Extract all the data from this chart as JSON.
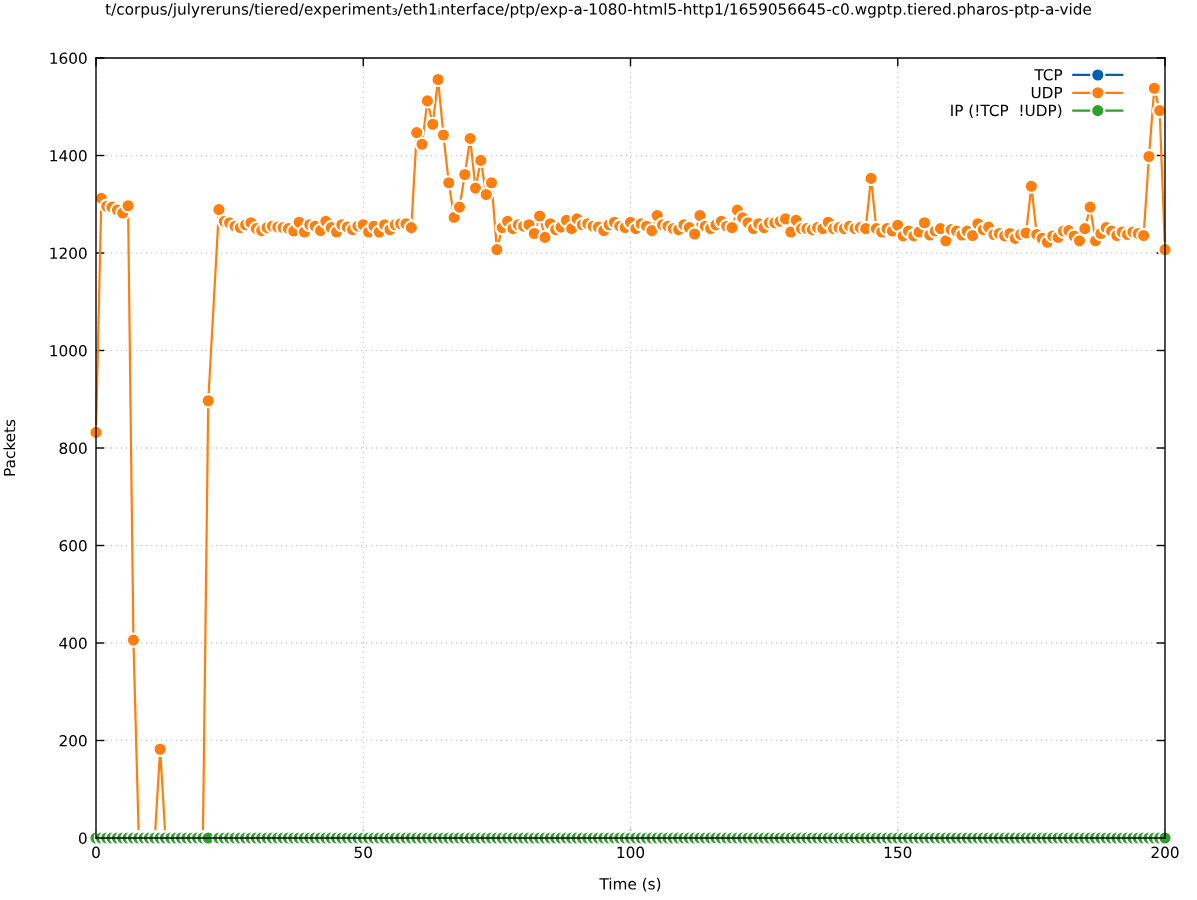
{
  "chart_data": {
    "type": "line",
    "title": "t/corpus/julyreruns/tiered/experiment₃/eth1ᵢnterface/ptp/exp-a-1080-html5-http1/1659056645-c0.wgptp.tiered.pharos-ptp-a-vide",
    "xlabel": "Time (s)",
    "ylabel": "Packets",
    "xlim": [
      0,
      200
    ],
    "ylim": [
      0,
      1600
    ],
    "xticks": [
      0,
      50,
      100,
      150,
      200
    ],
    "yticks": [
      0,
      200,
      400,
      600,
      800,
      1000,
      1200,
      1400,
      1600
    ],
    "grid": true,
    "legend": "top right",
    "marker": "circle",
    "line_style": "solid",
    "x": [
      0,
      1,
      2,
      3,
      4,
      5,
      6,
      7,
      8,
      9,
      10,
      11,
      12,
      13,
      14,
      15,
      16,
      17,
      18,
      19,
      20,
      21,
      23,
      24,
      25,
      26,
      27,
      28,
      29,
      30,
      31,
      32,
      33,
      34,
      35,
      36,
      37,
      38,
      39,
      40,
      41,
      42,
      43,
      44,
      45,
      46,
      47,
      48,
      49,
      50,
      51,
      52,
      53,
      54,
      55,
      56,
      57,
      58,
      59,
      60,
      61,
      62,
      63,
      64,
      65,
      66,
      67,
      68,
      69,
      70,
      71,
      72,
      73,
      74,
      75,
      76,
      77,
      78,
      79,
      80,
      81,
      82,
      83,
      84,
      85,
      86,
      87,
      88,
      89,
      90,
      91,
      92,
      93,
      94,
      95,
      96,
      97,
      98,
      99,
      100,
      101,
      102,
      103,
      104,
      105,
      106,
      107,
      108,
      109,
      110,
      111,
      112,
      113,
      114,
      115,
      116,
      117,
      118,
      119,
      120,
      121,
      122,
      123,
      124,
      125,
      126,
      127,
      128,
      129,
      130,
      131,
      132,
      133,
      134,
      135,
      136,
      137,
      138,
      139,
      140,
      141,
      142,
      143,
      144,
      145,
      146,
      147,
      148,
      149,
      150,
      151,
      152,
      153,
      154,
      155,
      156,
      157,
      158,
      159,
      160,
      161,
      162,
      163,
      164,
      165,
      166,
      167,
      168,
      169,
      170,
      171,
      172,
      173,
      174,
      175,
      176,
      177,
      178,
      179,
      180,
      181,
      182,
      183,
      184,
      185,
      186,
      187,
      188,
      189,
      190,
      191,
      192,
      193,
      194,
      195,
      196,
      197,
      198,
      199,
      200
    ],
    "series": [
      {
        "name": "TCP",
        "color": "#0060ad",
        "values": [
          null,
          null,
          null,
          null,
          null,
          null,
          null,
          null,
          null,
          null,
          null,
          null,
          null,
          null,
          null,
          null,
          null,
          null,
          null,
          null,
          null,
          null,
          null,
          null,
          null,
          null,
          null,
          null,
          null,
          null,
          null,
          null,
          null,
          null,
          null,
          null,
          null,
          null,
          null,
          null,
          null,
          null,
          null,
          null,
          null,
          null,
          null,
          null,
          null,
          null,
          null,
          null,
          null,
          null,
          null,
          null,
          null,
          null,
          null,
          null,
          null,
          null,
          null,
          null,
          null,
          null,
          null,
          null,
          null,
          null,
          null,
          null,
          null,
          null,
          null,
          null,
          null,
          null,
          null,
          null,
          null,
          null,
          null,
          null,
          null,
          null,
          null,
          null,
          null,
          null,
          null,
          null,
          null,
          null,
          null,
          null,
          null,
          null,
          null,
          null,
          null,
          null,
          null,
          null,
          null,
          null,
          null,
          null,
          null,
          null,
          null,
          null,
          null,
          null,
          null,
          null,
          null,
          null,
          null,
          null,
          null,
          null,
          null,
          null,
          null,
          null,
          null,
          null,
          null,
          null,
          null,
          null,
          null,
          null,
          null,
          null,
          null,
          null,
          null,
          null,
          null,
          null,
          null,
          null,
          null,
          null,
          null,
          null,
          null,
          null,
          null,
          null,
          null,
          null,
          null,
          null,
          null,
          null,
          null,
          null,
          null,
          null,
          null,
          null,
          null,
          null,
          null,
          null,
          null,
          null,
          null,
          null,
          null,
          null,
          null,
          null,
          null,
          null,
          null,
          null,
          null,
          null,
          null,
          null,
          null,
          null,
          null,
          null,
          null,
          null,
          null,
          null,
          null,
          null,
          null,
          null,
          null,
          null,
          null,
          null
        ]
      },
      {
        "name": "UDP",
        "color": "#ff7f0e",
        "values": [
          832,
          1312,
          1296,
          1294,
          1288,
          1282,
          1297,
          406,
          0,
          0,
          0,
          0,
          182,
          0,
          0,
          0,
          0,
          0,
          0,
          0,
          0,
          897,
          1289,
          1265,
          1262,
          1255,
          1252,
          1258,
          1262,
          1250,
          1246,
          1252,
          1255,
          1253,
          1252,
          1250,
          1245,
          1263,
          1243,
          1258,
          1255,
          1246,
          1265,
          1252,
          1243,
          1258,
          1253,
          1248,
          1255,
          1258,
          1243,
          1255,
          1243,
          1258,
          1248,
          1258,
          1260,
          1260,
          1252,
          1447,
          1423,
          1512,
          1464,
          1556,
          1442,
          1344,
          1273,
          1294,
          1361,
          1435,
          1333,
          1390,
          1320,
          1344,
          1207,
          1252,
          1265,
          1250,
          1258,
          1255,
          1258,
          1240,
          1276,
          1232,
          1260,
          1248,
          1253,
          1267,
          1250,
          1270,
          1258,
          1260,
          1255,
          1253,
          1246,
          1258,
          1263,
          1255,
          1252,
          1263,
          1250,
          1260,
          1255,
          1246,
          1277,
          1258,
          1255,
          1250,
          1248,
          1258,
          1252,
          1239,
          1277,
          1255,
          1250,
          1258,
          1265,
          1255,
          1252,
          1288,
          1272,
          1262,
          1250,
          1260,
          1252,
          1262,
          1262,
          1265,
          1270,
          1243,
          1267,
          1250,
          1250,
          1248,
          1252,
          1250,
          1263,
          1250,
          1252,
          1250,
          1255,
          1250,
          1252,
          1250,
          1353,
          1250,
          1243,
          1250,
          1245,
          1257,
          1235,
          1245,
          1235,
          1243,
          1262,
          1237,
          1245,
          1250,
          1225,
          1248,
          1245,
          1237,
          1245,
          1236,
          1260,
          1248,
          1253,
          1238,
          1240,
          1235,
          1240,
          1230,
          1238,
          1241,
          1337,
          1238,
          1230,
          1222,
          1235,
          1232,
          1245,
          1246,
          1235,
          1225,
          1250,
          1294,
          1225,
          1240,
          1252,
          1245,
          1236,
          1243,
          1238,
          1243,
          1240,
          1236,
          1398,
          1538,
          1492,
          1207
        ]
      },
      {
        "name": "IP (!TCP  !UDP)",
        "color": "#2ca02c",
        "values": [
          0,
          0,
          0,
          0,
          0,
          0,
          0,
          0,
          0,
          0,
          0,
          0,
          0,
          0,
          0,
          0,
          0,
          0,
          0,
          0,
          0,
          0,
          0,
          0,
          0,
          0,
          0,
          0,
          0,
          0,
          0,
          0,
          0,
          0,
          0,
          0,
          0,
          0,
          0,
          0,
          0,
          0,
          0,
          0,
          0,
          0,
          0,
          0,
          0,
          0,
          0,
          0,
          0,
          0,
          0,
          0,
          0,
          0,
          0,
          0,
          0,
          0,
          0,
          0,
          0,
          0,
          0,
          0,
          0,
          0,
          0,
          0,
          0,
          0,
          0,
          0,
          0,
          0,
          0,
          0,
          0,
          0,
          0,
          0,
          0,
          0,
          0,
          0,
          0,
          0,
          0,
          0,
          0,
          0,
          0,
          0,
          0,
          0,
          0,
          0,
          0,
          0,
          0,
          0,
          0,
          0,
          0,
          0,
          0,
          0,
          0,
          0,
          0,
          0,
          0,
          0,
          0,
          0,
          0,
          0,
          0,
          0,
          0,
          0,
          0,
          0,
          0,
          0,
          0,
          0,
          0,
          0,
          0,
          0,
          0,
          0,
          0,
          0,
          0,
          0,
          0,
          0,
          0,
          0,
          0,
          0,
          0,
          0,
          0,
          0,
          0,
          0,
          0,
          0,
          0,
          0,
          0,
          0,
          0,
          0,
          0,
          0,
          0,
          0,
          0,
          0,
          0,
          0,
          0,
          0,
          0,
          0,
          0,
          0,
          0,
          0,
          0,
          0,
          0,
          0,
          0,
          0,
          0,
          0,
          0,
          0,
          0,
          0,
          0,
          0,
          0,
          0,
          0,
          0,
          0,
          0,
          0,
          0,
          0,
          0
        ]
      }
    ]
  }
}
